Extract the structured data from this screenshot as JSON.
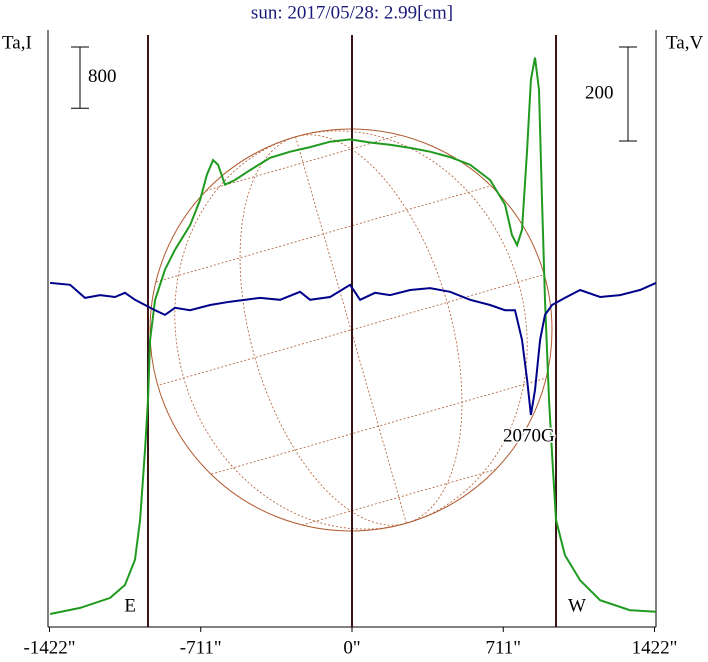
{
  "chart_data": {
    "type": "line",
    "title": "sun: 2017/05/28: 2.99[cm]",
    "ylabel": "Ta,I",
    "y2label": "Ta,V",
    "xlim": [
      -1429,
      1429
    ],
    "xticks": [
      {
        "value": -1422,
        "label": "-1422\""
      },
      {
        "value": -711,
        "label": "-711\""
      },
      {
        "value": 0,
        "label": "0\""
      },
      {
        "value": 711,
        "label": "711\""
      },
      {
        "value": 1422,
        "label": "1422\""
      }
    ],
    "ylim": [
      0,
      7800
    ],
    "y2lim": [
      -732,
      538
    ],
    "vlines": [
      -959,
      0,
      959
    ],
    "limb_labels": [
      {
        "x": -959,
        "label": "E"
      },
      {
        "x": 959,
        "label": "W"
      }
    ],
    "scale_bars": [
      {
        "axis": "y",
        "value": 800,
        "label": "800"
      },
      {
        "axis": "y2",
        "value": 200,
        "label": "200"
      }
    ],
    "annotations": [
      {
        "x": 841,
        "y": -281,
        "axis": "y2",
        "text": "2070G"
      }
    ],
    "series": [
      {
        "color": "#1f9a1f",
        "x": [
          -1419,
          -1278,
          -1137,
          -1067,
          -1020,
          -996,
          -973,
          -959,
          -949,
          -926,
          -879,
          -832,
          -761,
          -714,
          -682,
          -653,
          -630,
          -597,
          -550,
          -479,
          -385,
          -291,
          -197,
          -103,
          -9,
          85,
          179,
          273,
          367,
          461,
          555,
          649,
          719,
          752,
          776,
          799,
          823,
          841,
          860,
          879,
          893,
          907,
          926,
          945,
          959,
          1001,
          1072,
          1166,
          1307,
          1429
        ],
        "values": [
          170,
          250,
          380,
          550,
          880,
          1400,
          2310,
          2970,
          3750,
          4270,
          4670,
          4930,
          5250,
          5580,
          5910,
          6100,
          6040,
          5780,
          5840,
          5970,
          6130,
          6210,
          6270,
          6340,
          6370,
          6330,
          6300,
          6260,
          6210,
          6140,
          6040,
          5840,
          5520,
          5120,
          4990,
          5190,
          6230,
          7150,
          7440,
          7020,
          5580,
          4270,
          2970,
          2050,
          1400,
          940,
          610,
          350,
          220,
          200
        ]
      },
      {
        "color": "#00008b",
        "axis": "y2",
        "x": [
          -1419,
          -1325,
          -1255,
          -1184,
          -1114,
          -1067,
          -1020,
          -973,
          -926,
          -879,
          -832,
          -761,
          -667,
          -573,
          -432,
          -338,
          -244,
          -197,
          -103,
          -9,
          38,
          108,
          179,
          273,
          367,
          461,
          555,
          649,
          719,
          766,
          799,
          823,
          841,
          860,
          884,
          907,
          940,
          1001,
          1072,
          1166,
          1260,
          1354,
          1429
        ],
        "values": [
          0,
          -4,
          -32,
          -26,
          -30,
          -21,
          -36,
          -47,
          -58,
          -68,
          -53,
          -58,
          -47,
          -40,
          -32,
          -36,
          -19,
          -36,
          -30,
          -4,
          -36,
          -21,
          -26,
          -15,
          -11,
          -19,
          -36,
          -47,
          -58,
          -58,
          -121,
          -206,
          -281,
          -228,
          -121,
          -68,
          -47,
          -32,
          -15,
          -30,
          -26,
          -15,
          0
        ]
      }
    ]
  }
}
